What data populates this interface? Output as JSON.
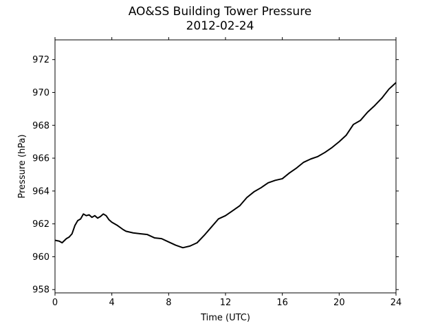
{
  "chart_data": {
    "type": "line",
    "title": "AO&SS Building Tower Pressure",
    "subtitle": "2012-02-24",
    "xlabel": "Time (UTC)",
    "ylabel": "Pressure (hPa)",
    "xlim": [
      0,
      24
    ],
    "ylim": [
      957.8,
      973.2
    ],
    "xticks": [
      0,
      4,
      8,
      12,
      16,
      20,
      24
    ],
    "yticks": [
      958,
      960,
      962,
      964,
      966,
      968,
      970,
      972
    ],
    "grid": false,
    "legend": "none",
    "series": [
      {
        "color": "#000000",
        "x": [
          0,
          0.3,
          0.5,
          0.8,
          1.0,
          1.2,
          1.4,
          1.6,
          1.8,
          2.0,
          2.2,
          2.4,
          2.6,
          2.8,
          3.0,
          3.2,
          3.4,
          3.6,
          3.8,
          4.0,
          4.4,
          4.8,
          5.0,
          5.5,
          6.0,
          6.5,
          7.0,
          7.5,
          8.0,
          8.5,
          9.0,
          9.5,
          10.0,
          10.5,
          11.0,
          11.5,
          12.0,
          12.5,
          13.0,
          13.5,
          14.0,
          14.5,
          15.0,
          15.5,
          16.0,
          16.5,
          17.0,
          17.5,
          18.0,
          18.5,
          19.0,
          19.5,
          20.0,
          20.5,
          21.0,
          21.5,
          22.0,
          22.5,
          23.0,
          23.5,
          24.0
        ],
        "y": [
          961.0,
          960.95,
          960.85,
          961.1,
          961.2,
          961.4,
          961.9,
          962.2,
          962.3,
          962.6,
          962.5,
          962.55,
          962.4,
          962.5,
          962.35,
          962.45,
          962.6,
          962.5,
          962.25,
          962.1,
          961.9,
          961.65,
          961.55,
          961.45,
          961.4,
          961.35,
          961.15,
          961.1,
          960.9,
          960.7,
          960.55,
          960.65,
          960.85,
          961.3,
          961.8,
          962.3,
          962.5,
          962.8,
          963.1,
          963.6,
          963.95,
          964.2,
          964.5,
          964.65,
          964.75,
          965.1,
          965.4,
          965.75,
          965.95,
          966.1,
          966.35,
          966.65,
          967.0,
          967.4,
          968.05,
          968.3,
          968.8,
          969.2,
          969.65,
          970.2,
          970.6
        ]
      }
    ]
  }
}
